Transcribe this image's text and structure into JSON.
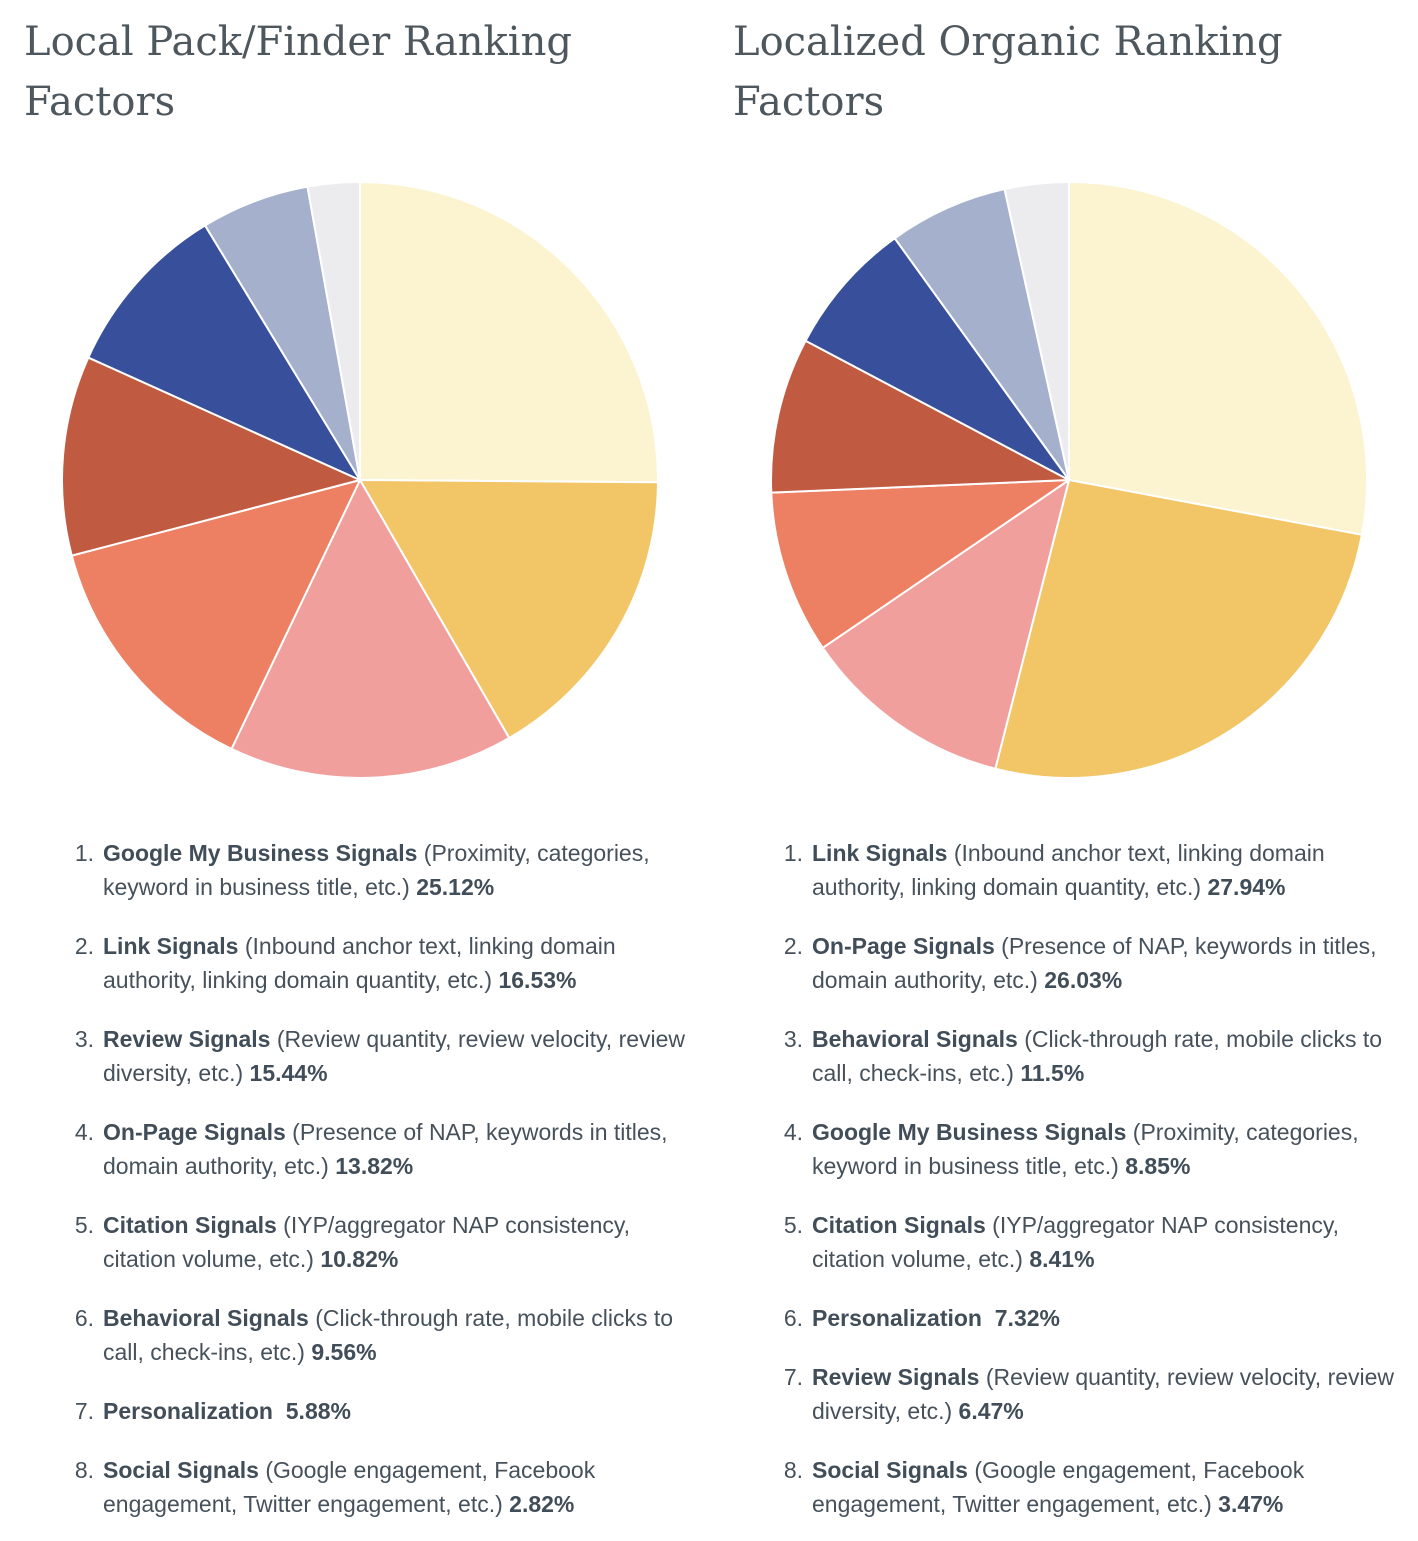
{
  "page": {
    "background": "#ffffff"
  },
  "colors": {
    "slice_palette": [
      "#fcf4d1",
      "#f2c566",
      "#f09f9c",
      "#ed7f62",
      "#c05a41",
      "#38509b",
      "#a4b0cc",
      "#ecebed"
    ],
    "slice_stroke": "#ffffff",
    "title_text": "#4d575d",
    "body_text": "#46515b"
  },
  "chart_data": [
    {
      "type": "pie",
      "title": "Local Pack/Finder Ranking Factors",
      "legend_position": "below",
      "start_angle_deg": 0,
      "direction": "clockwise",
      "slices": [
        {
          "num": "1.",
          "name": "Google My Business Signals",
          "desc": "(Proximity, categories, keyword in business title, etc.)",
          "value": 25.12,
          "pct": "25.12%",
          "color": "#fcf4d1"
        },
        {
          "num": "2.",
          "name": "Link Signals",
          "desc": "(Inbound anchor text, linking domain authority, linking domain quantity, etc.)",
          "value": 16.53,
          "pct": "16.53%",
          "color": "#f2c566"
        },
        {
          "num": "3.",
          "name": "Review Signals",
          "desc": "(Review quantity, review velocity, review diversity, etc.)",
          "value": 15.44,
          "pct": "15.44%",
          "color": "#f09f9c"
        },
        {
          "num": "4.",
          "name": "On-Page Signals",
          "desc": "(Presence of NAP, keywords in titles, domain authority, etc.)",
          "value": 13.82,
          "pct": "13.82%",
          "color": "#ed7f62"
        },
        {
          "num": "5.",
          "name": "Citation Signals",
          "desc": "(IYP/aggregator NAP consistency, citation volume, etc.)",
          "value": 10.82,
          "pct": "10.82%",
          "color": "#c05a41"
        },
        {
          "num": "6.",
          "name": "Behavioral Signals",
          "desc": "(Click-through rate, mobile clicks to call, check-ins, etc.)",
          "value": 9.56,
          "pct": "9.56%",
          "color": "#38509b"
        },
        {
          "num": "7.",
          "name": "Personalization",
          "desc": "",
          "value": 5.88,
          "pct": "5.88%",
          "color": "#a4b0cc"
        },
        {
          "num": "8.",
          "name": "Social Signals",
          "desc": "(Google engagement, Facebook engagement, Twitter engagement, etc.)",
          "value": 2.82,
          "pct": "2.82%",
          "color": "#ecebed"
        }
      ]
    },
    {
      "type": "pie",
      "title": "Localized Organic Ranking Factors",
      "legend_position": "below",
      "start_angle_deg": 0,
      "direction": "clockwise",
      "slices": [
        {
          "num": "1.",
          "name": "Link Signals",
          "desc": "(Inbound anchor text, linking domain authority, linking domain quantity, etc.)",
          "value": 27.94,
          "pct": "27.94%",
          "color": "#fcf4d1"
        },
        {
          "num": "2.",
          "name": "On-Page Signals",
          "desc": "(Presence of NAP, keywords in titles, domain authority, etc.)",
          "value": 26.03,
          "pct": "26.03%",
          "color": "#f2c566"
        },
        {
          "num": "3.",
          "name": "Behavioral Signals",
          "desc": "(Click-through rate, mobile clicks to call, check-ins, etc.)",
          "value": 11.5,
          "pct": "11.5%",
          "color": "#f09f9c"
        },
        {
          "num": "4.",
          "name": "Google My Business Signals",
          "desc": "(Proximity, categories, keyword in business title, etc.)",
          "value": 8.85,
          "pct": "8.85%",
          "color": "#ed7f62"
        },
        {
          "num": "5.",
          "name": "Citation Signals",
          "desc": "(IYP/aggregator NAP consistency, citation volume, etc.)",
          "value": 8.41,
          "pct": "8.41%",
          "color": "#c05a41"
        },
        {
          "num": "6.",
          "name": "Personalization",
          "desc": "",
          "value": 7.32,
          "pct": "7.32%",
          "color": "#38509b"
        },
        {
          "num": "7.",
          "name": "Review Signals",
          "desc": "(Review quantity, review velocity, review diversity, etc.)",
          "value": 6.47,
          "pct": "6.47%",
          "color": "#a4b0cc"
        },
        {
          "num": "8.",
          "name": "Social Signals",
          "desc": "(Google engagement, Facebook engagement, Twitter engagement, etc.)",
          "value": 3.47,
          "pct": "3.47%",
          "color": "#ecebed"
        }
      ]
    }
  ]
}
